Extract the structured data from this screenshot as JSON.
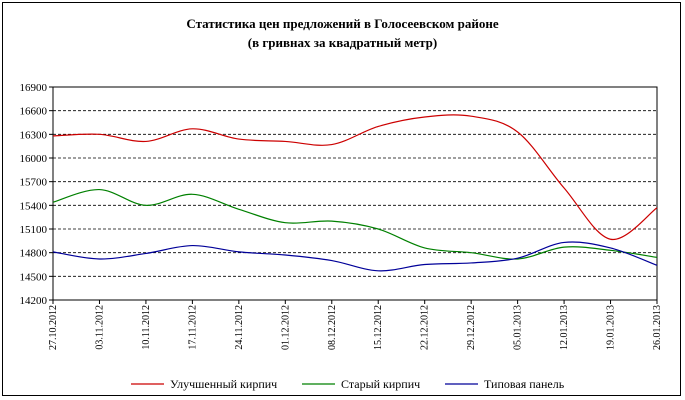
{
  "chart_data": {
    "type": "line",
    "title": "Статистика цен предложений в Голосеевском районе",
    "subtitle": "(в гривнах за квадратный метр)",
    "x": [
      "27.10.2012",
      "03.11.2012",
      "10.11.2012",
      "17.11.2012",
      "24.11.2012",
      "01.12.2012",
      "08.12.2012",
      "15.12.2012",
      "22.12.2012",
      "29.12.2012",
      "05.01.2013",
      "12.01.2013",
      "19.01.2013",
      "26.01.2013"
    ],
    "ylim": [
      14200,
      16900
    ],
    "yticks": [
      14200,
      14500,
      14800,
      15100,
      15400,
      15700,
      16000,
      16300,
      16600,
      16900
    ],
    "grid": "horizontal dashed",
    "legend": "bottom",
    "series": [
      {
        "name": "Улучшенный кирпич",
        "color": "#cc0000",
        "values": [
          16280,
          16300,
          16210,
          16370,
          16240,
          16210,
          16170,
          16400,
          16520,
          16530,
          16330,
          15620,
          14970,
          15370
        ]
      },
      {
        "name": "Старый кирпич",
        "color": "#008000",
        "values": [
          15440,
          15600,
          15400,
          15540,
          15350,
          15180,
          15200,
          15100,
          14860,
          14800,
          14720,
          14870,
          14830,
          14740
        ]
      },
      {
        "name": "Типовая панель",
        "color": "#000099",
        "values": [
          14810,
          14720,
          14790,
          14890,
          14810,
          14770,
          14700,
          14570,
          14650,
          14670,
          14730,
          14930,
          14860,
          14640
        ]
      }
    ]
  }
}
